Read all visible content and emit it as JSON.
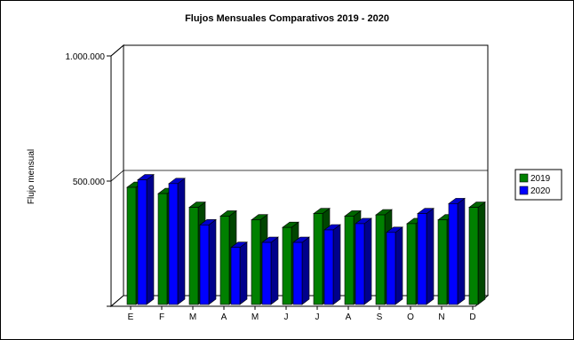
{
  "chart_data": {
    "type": "bar",
    "title": "Flujos Mensuales Comparativos 2019 - 2020",
    "xlabel": "",
    "ylabel": "Flujo mensual",
    "categories": [
      "E",
      "F",
      "M",
      "A",
      "M",
      "J",
      "J",
      "A",
      "S",
      "O",
      "N",
      "D"
    ],
    "y_ticks": [
      {
        "value": 500000,
        "label": "500.000"
      },
      {
        "value": 1000000,
        "label": "1.000.000"
      }
    ],
    "ylim": [
      0,
      1000000
    ],
    "grid": true,
    "legend_position": "right",
    "series": [
      {
        "name": "2019",
        "color": "#008000",
        "values": [
          475000,
          450000,
          395000,
          360000,
          345000,
          315000,
          370000,
          360000,
          365000,
          330000,
          345000,
          395000
        ]
      },
      {
        "name": "2020",
        "color": "#0000ff",
        "values": [
          505000,
          490000,
          325000,
          235000,
          255000,
          255000,
          305000,
          330000,
          295000,
          370000,
          410000,
          null
        ]
      }
    ]
  }
}
